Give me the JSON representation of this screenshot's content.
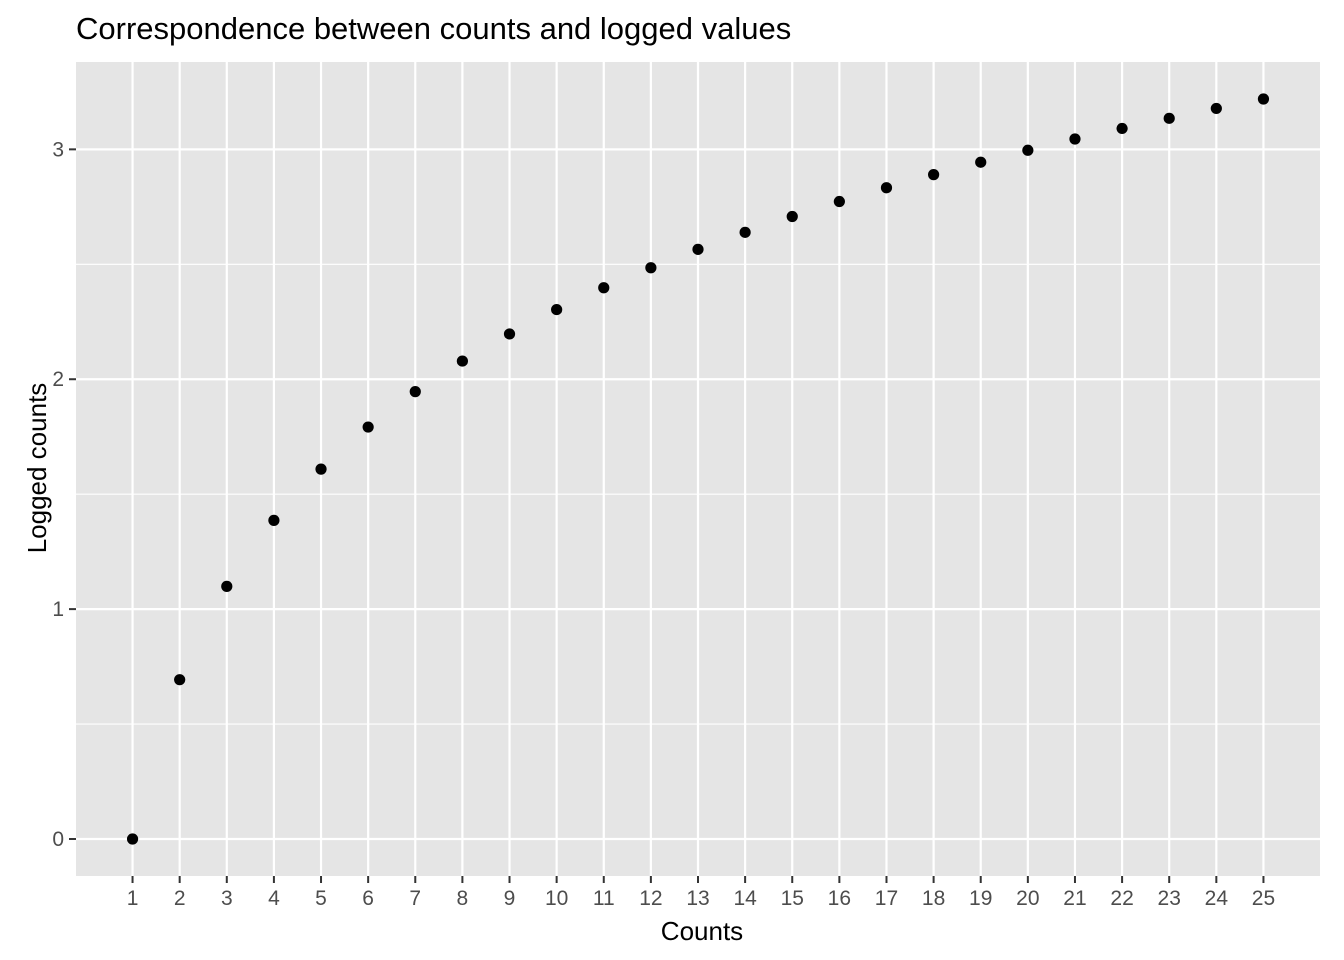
{
  "chart_data": {
    "type": "scatter",
    "title": "Correspondence between counts and logged values",
    "xlabel": "Counts",
    "ylabel": "Logged counts",
    "x": [
      1,
      2,
      3,
      4,
      5,
      6,
      7,
      8,
      9,
      10,
      11,
      12,
      13,
      14,
      15,
      16,
      17,
      18,
      19,
      20,
      21,
      22,
      23,
      24,
      25
    ],
    "y": [
      0,
      0.693,
      1.099,
      1.386,
      1.609,
      1.792,
      1.946,
      2.079,
      2.197,
      2.303,
      2.398,
      2.485,
      2.565,
      2.639,
      2.708,
      2.773,
      2.833,
      2.89,
      2.944,
      2.996,
      3.045,
      3.091,
      3.135,
      3.178,
      3.219
    ],
    "x_ticks": [
      "1",
      "2",
      "3",
      "4",
      "5",
      "6",
      "7",
      "8",
      "9",
      "10",
      "11",
      "12",
      "13",
      "14",
      "15",
      "16",
      "17",
      "18",
      "19",
      "20",
      "21",
      "22",
      "23",
      "24",
      "25"
    ],
    "y_ticks": [
      "0",
      "1",
      "2",
      "3"
    ],
    "xlim": [
      -0.2,
      26.2
    ],
    "ylim": [
      -0.161,
      3.38
    ],
    "grid": true,
    "legend": "none",
    "colors": {
      "panel_background": "#e5e5e5",
      "grid_line": "#ffffff",
      "point": "#000000",
      "tick_label": "#4d4d4d",
      "tick_mark": "#333333"
    }
  }
}
